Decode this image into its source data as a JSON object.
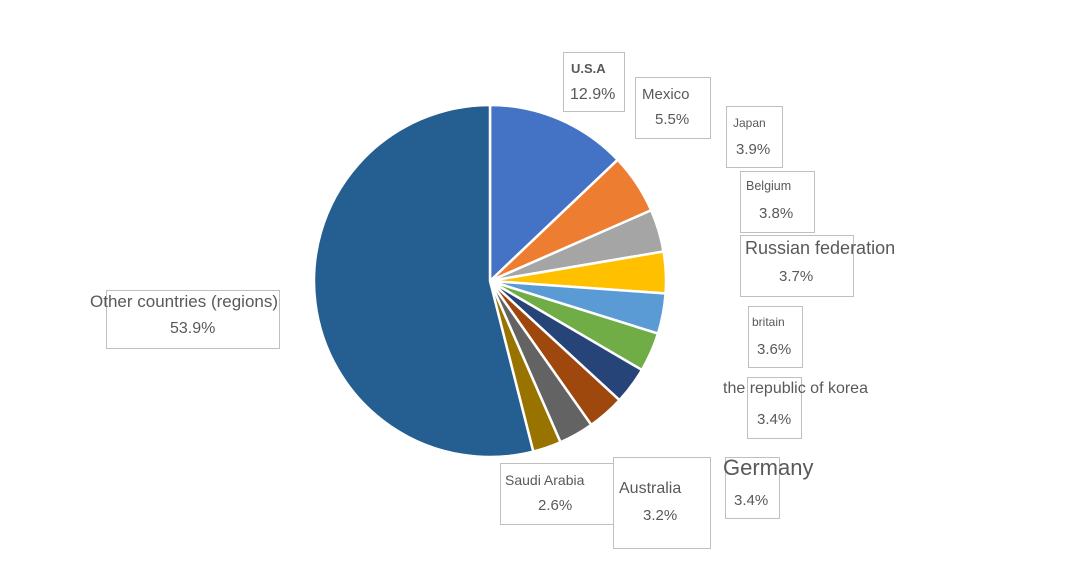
{
  "chart_data": {
    "type": "pie",
    "start_angle": "top, clockwise",
    "slices": [
      {
        "label": "U.S.A",
        "value": 12.9,
        "display": "12.9%",
        "color": "#4472C4"
      },
      {
        "label": "Mexico",
        "value": 5.5,
        "display": "5.5%",
        "color": "#ED7D31"
      },
      {
        "label": "Japan",
        "value": 3.9,
        "display": "3.9%",
        "color": "#A5A5A5"
      },
      {
        "label": "Belgium",
        "value": 3.8,
        "display": "3.8%",
        "color": "#FFC000"
      },
      {
        "label": "Russian federation",
        "value": 3.7,
        "display": "3.7%",
        "color": "#5B9BD5"
      },
      {
        "label": "britain",
        "value": 3.6,
        "display": "3.6%",
        "color": "#70AD47"
      },
      {
        "label": "the republic of korea",
        "value": 3.4,
        "display": "3.4%",
        "color": "#264478"
      },
      {
        "label": "Germany",
        "value": 3.4,
        "display": "3.4%",
        "color": "#9E480E"
      },
      {
        "label": "Australia",
        "value": 3.2,
        "display": "3.2%",
        "color": "#636363"
      },
      {
        "label": "Saudi Arabia",
        "value": 2.6,
        "display": "2.6%",
        "color": "#997300"
      },
      {
        "label": "Other countries (regions)",
        "value": 53.9,
        "display": "53.9%",
        "color": "#255E91"
      }
    ]
  }
}
